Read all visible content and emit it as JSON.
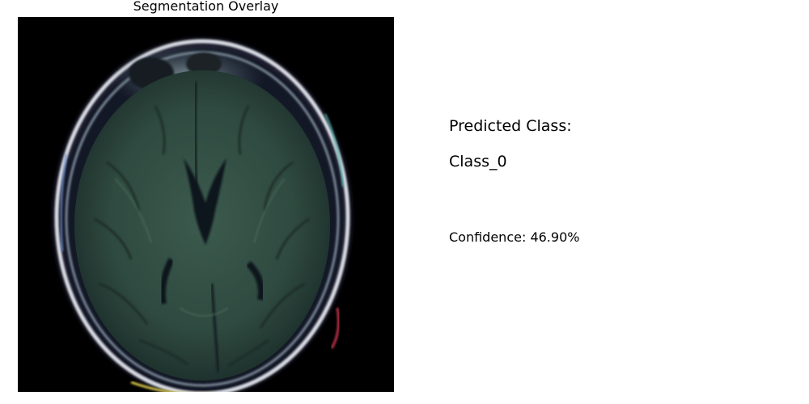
{
  "overlay_panel": {
    "title": "Segmentation Overlay",
    "image_subject": "axial-brain-mri-scan"
  },
  "prediction": {
    "heading": "Predicted Class:",
    "class_name": "Class_0",
    "confidence_text": "Confidence: 46.90%"
  },
  "colors": {
    "background": "#ffffff",
    "text": "#000000",
    "scan_background": "#000000",
    "tissue_tint": "#2f4a40",
    "skull_highlight": "#e8ecef"
  }
}
